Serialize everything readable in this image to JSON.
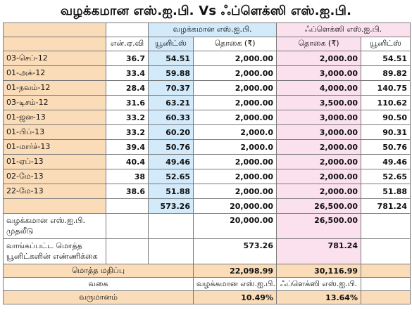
{
  "title": "வழக்கமான எஸ்.ஐ.பி. Vs ஃப்ளெக்ஸி எஸ்.ஐ.பி.",
  "header": {
    "group_regular": "வழக்கமான எஸ்.ஐ.பி.",
    "group_flexi": "ஃப்ளெக்ஸி எஸ்.ஐ.பி.",
    "col_nav": "என்.ஏ.வி",
    "col_units": "யூனிட்ஸ்",
    "col_amount": "தொகை (₹)",
    "col_flexi_amount": "தொகை (₹)",
    "col_flexi_units": "யூனிட்ஸ்"
  },
  "rows": [
    {
      "date": "03-செப்-12",
      "nav": "36.7",
      "units": "54.51",
      "amount": "2,000.00",
      "flexi_amount": "2,000.00",
      "flexi_units": "54.51"
    },
    {
      "date": "01-அக்-12",
      "nav": "33.4",
      "units": "59.88",
      "amount": "2,000.00",
      "flexi_amount": "3,000.00",
      "flexi_units": "89.82"
    },
    {
      "date": "01-நவம்-12",
      "nav": "28.4",
      "units": "70.37",
      "amount": "2,000.00",
      "flexi_amount": "4,000.00",
      "flexi_units": "140.75"
    },
    {
      "date": "03-டிசம்-12",
      "nav": "31.6",
      "units": "63.21",
      "amount": "2,000.00",
      "flexi_amount": "3,500.00",
      "flexi_units": "110.62"
    },
    {
      "date": "01-ஜன-13",
      "nav": "33.2",
      "units": "60.33",
      "amount": "2,000.00",
      "flexi_amount": "3,000.00",
      "flexi_units": "90.50"
    },
    {
      "date": "01-பிப்-13",
      "nav": "33.2",
      "units": "60.20",
      "amount": "2,000.0",
      "flexi_amount": "3,000.00",
      "flexi_units": "90.31"
    },
    {
      "date": "01-மார்ச்-13",
      "nav": "39.4",
      "units": "50.76",
      "amount": "2,000.0",
      "flexi_amount": "2,000.00",
      "flexi_units": "50.76"
    },
    {
      "date": "01-ஏப்-13",
      "nav": "40.4",
      "units": "49.46",
      "amount": "2,000.00",
      "flexi_amount": "2,000.00",
      "flexi_units": "49.46"
    },
    {
      "date": "02-மே-13",
      "nav": "38",
      "units": "52.65",
      "amount": "2,000.00",
      "flexi_amount": "2,000.00",
      "flexi_units": "52.65"
    },
    {
      "date": "22-மே-13",
      "nav": "38.6",
      "units": "51.88",
      "amount": "2,000.00",
      "flexi_amount": "2,000.00",
      "flexi_units": "51.88"
    }
  ],
  "totals": {
    "units": "573.26",
    "amount": "20,000.00",
    "flexi_amount": "26,500.00",
    "flexi_units": "781.24"
  },
  "investment": {
    "label": "வழக்கமான எஸ்.ஐ.பி. முதலீடு",
    "regular": "20,000.00",
    "flexi": "26,500.00"
  },
  "units_bought": {
    "label": "வாங்கப்பட்ட மொத்த யூனிட்களின் எண்ணிக்கை",
    "regular": "573.26",
    "flexi": "781.24"
  },
  "total_value": {
    "label": "மொத்த மதிப்பு",
    "regular": "22,098.99",
    "flexi": "30,116.99"
  },
  "type": {
    "label": "வகை",
    "regular": "வழக்கமான எஸ்.ஐ.பி.",
    "flexi": "ஃப்ளெக்ஸி எஸ்.ஐ.பி."
  },
  "returns": {
    "label": "வருமானம்",
    "regular": "10.49%",
    "flexi": "13.64%"
  },
  "colors": {
    "date_column": "#fbdcb8",
    "units_column": "#d3eafa",
    "flexi_amount_column": "#fbe1ee"
  }
}
